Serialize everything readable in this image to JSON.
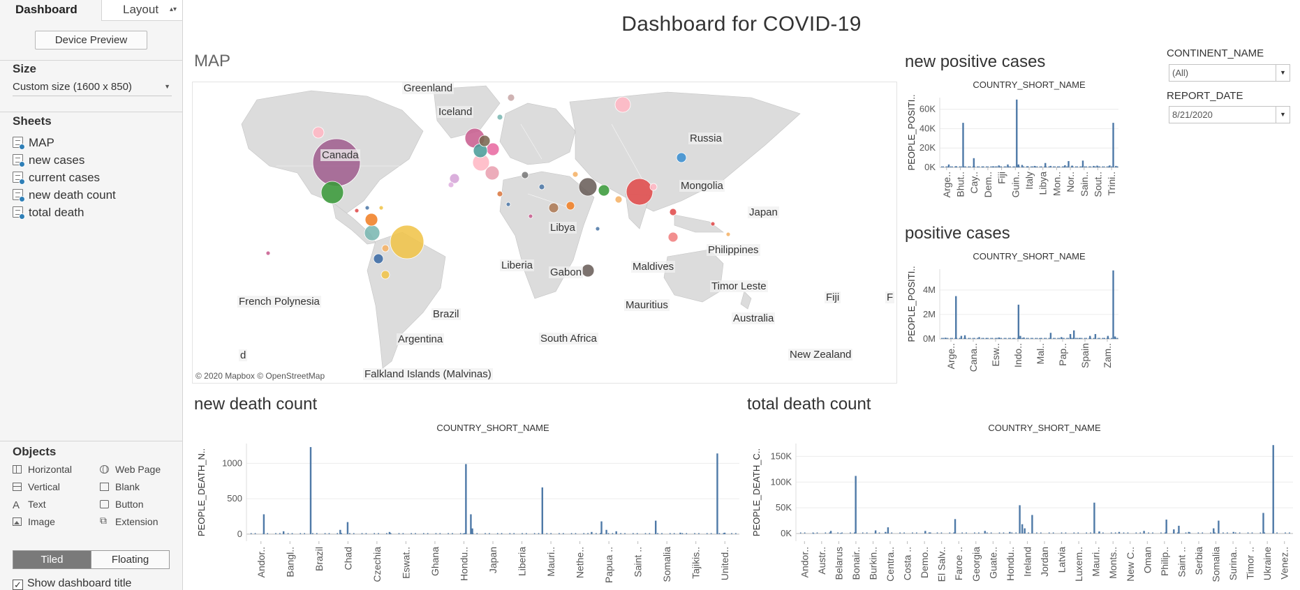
{
  "sidebar": {
    "tabs": {
      "dashboard": "Dashboard",
      "layout": "Layout"
    },
    "device_preview": "Device Preview",
    "size": {
      "title": "Size",
      "value": "Custom size (1600 x 850)"
    },
    "sheets": {
      "title": "Sheets",
      "items": [
        "MAP",
        "new cases",
        "current cases",
        "new death count",
        "total death"
      ]
    },
    "objects": {
      "title": "Objects",
      "items": [
        "Horizontal",
        "Web Page",
        "Vertical",
        "Blank",
        "Text",
        "Button",
        "Image",
        "Extension"
      ]
    },
    "layout_mode": {
      "tiled": "Tiled",
      "floating": "Floating",
      "selected": "Tiled"
    },
    "show_title": {
      "label": "Show dashboard title",
      "checked": true
    }
  },
  "dashboard": {
    "title": "Dashboard for COVID-19",
    "map": {
      "title": "MAP",
      "credit": "© 2020 Mapbox © OpenStreetMap",
      "labels": [
        "Greenland",
        "Iceland",
        "Russia",
        "Canada",
        "Mongolia",
        "Japan",
        "Libya",
        "Philippines",
        "Liberia",
        "Gabon",
        "Maldives",
        "Timor Leste",
        "French Polynesia",
        "Mauritius",
        "Fiji",
        "Brazil",
        "Australia",
        "Argentina",
        "South Africa",
        "New Zealand",
        "Falkland Islands (Malvinas)",
        "d",
        "F"
      ]
    },
    "filters": {
      "continent": {
        "label": "CONTINENT_NAME",
        "value": "(All)"
      },
      "report_date": {
        "label": "REPORT_DATE",
        "value": "8/21/2020"
      }
    }
  },
  "colors": {
    "bar": "#4e79a7",
    "grid": "#ececec",
    "land": "#d9d9d9",
    "water": "#ffffff"
  },
  "chart_data": [
    {
      "id": "new-positive-cases",
      "type": "bar",
      "title": "new positive cases",
      "xlabel": "COUNTRY_SHORT_NAME",
      "ylabel": "PEOPLE_POSITI..",
      "yticks": [
        0,
        20000,
        40000,
        60000
      ],
      "ytick_labels": [
        "0K",
        "20K",
        "40K",
        "60K"
      ],
      "ylim": [
        0,
        72000
      ],
      "tick_labels": [
        "Arge..",
        "Bhut..",
        "Cay..",
        "Dem..",
        "Fiji",
        "Guin..",
        "Italy",
        "Libya",
        "Mon..",
        "Nor..",
        "Sain..",
        "Sout..",
        "Trini.."
      ],
      "bars": [
        [
          0.05,
          3000
        ],
        [
          0.09,
          1200
        ],
        [
          0.13,
          46000
        ],
        [
          0.19,
          9500
        ],
        [
          0.24,
          800
        ],
        [
          0.3,
          1100
        ],
        [
          0.33,
          2000
        ],
        [
          0.38,
          3000
        ],
        [
          0.43,
          70000
        ],
        [
          0.44,
          3000
        ],
        [
          0.46,
          2500
        ],
        [
          0.49,
          1200
        ],
        [
          0.53,
          1500
        ],
        [
          0.59,
          4500
        ],
        [
          0.62,
          1500
        ],
        [
          0.66,
          800
        ],
        [
          0.7,
          2200
        ],
        [
          0.72,
          6500
        ],
        [
          0.74,
          1800
        ],
        [
          0.8,
          7000
        ],
        [
          0.86,
          1500
        ],
        [
          0.88,
          1800
        ],
        [
          0.95,
          2000
        ],
        [
          0.97,
          46000
        ],
        [
          0.985,
          1500
        ]
      ]
    },
    {
      "id": "positive-cases",
      "type": "bar",
      "title": "positive cases",
      "xlabel": "COUNTRY_SHORT_NAME",
      "ylabel": "PEOPLE_POSITI..",
      "yticks": [
        0,
        2000000,
        4000000
      ],
      "ytick_labels": [
        "0M",
        "2M",
        "4M"
      ],
      "ylim": [
        0,
        5700000
      ],
      "tick_labels": [
        "Arge..",
        "Cana..",
        "Esw..",
        "Indo..",
        "Mal..",
        "Pap..",
        "Spain",
        "Zam.."
      ],
      "bars": [
        [
          0.03,
          100000
        ],
        [
          0.09,
          3500000
        ],
        [
          0.12,
          250000
        ],
        [
          0.14,
          300000
        ],
        [
          0.22,
          150000
        ],
        [
          0.26,
          80000
        ],
        [
          0.33,
          120000
        ],
        [
          0.41,
          60000
        ],
        [
          0.44,
          2800000
        ],
        [
          0.45,
          250000
        ],
        [
          0.47,
          120000
        ],
        [
          0.56,
          60000
        ],
        [
          0.62,
          500000
        ],
        [
          0.68,
          150000
        ],
        [
          0.73,
          400000
        ],
        [
          0.75,
          700000
        ],
        [
          0.78,
          80000
        ],
        [
          0.84,
          250000
        ],
        [
          0.87,
          400000
        ],
        [
          0.92,
          80000
        ],
        [
          0.94,
          250000
        ],
        [
          0.97,
          5600000
        ],
        [
          0.98,
          200000
        ]
      ]
    },
    {
      "id": "new-death-count",
      "type": "bar",
      "title": "new death count",
      "xlabel": "COUNTRY_SHORT_NAME",
      "ylabel": "PEOPLE_DEATH_N..",
      "yticks": [
        0,
        500,
        1000
      ],
      "ytick_labels": [
        "0",
        "500",
        "1000"
      ],
      "ylim": [
        -100,
        1280
      ],
      "tick_labels": [
        "Andor..",
        "Bangl..",
        "Brazil",
        "Chad",
        "Czechia",
        "Eswat..",
        "Ghana",
        "Hondu..",
        "Japan",
        "Liberia",
        "Mauri..",
        "Nethe..",
        "Papua ..",
        "Saint ..",
        "Somalia",
        "Tajikis..",
        "United.."
      ],
      "bars": [
        [
          0.035,
          280
        ],
        [
          0.075,
          40
        ],
        [
          0.13,
          1230
        ],
        [
          0.19,
          60
        ],
        [
          0.205,
          170
        ],
        [
          0.29,
          30
        ],
        [
          0.44,
          10
        ],
        [
          0.445,
          990
        ],
        [
          0.455,
          280
        ],
        [
          0.458,
          80
        ],
        [
          0.6,
          660
        ],
        [
          0.7,
          30
        ],
        [
          0.72,
          180
        ],
        [
          0.73,
          60
        ],
        [
          0.75,
          40
        ],
        [
          0.83,
          190
        ],
        [
          0.88,
          20
        ],
        [
          0.955,
          1140
        ],
        [
          0.97,
          20
        ]
      ]
    },
    {
      "id": "total-death-count",
      "type": "bar",
      "title": "total death count",
      "xlabel": "COUNTRY_SHORT_NAME",
      "ylabel": "PEOPLE_DEATH_C..",
      "yticks": [
        0,
        50000,
        100000,
        150000
      ],
      "ytick_labels": [
        "0K",
        "50K",
        "100K",
        "150K"
      ],
      "ylim": [
        -15000,
        175000
      ],
      "tick_labels": [
        "Andor..",
        "Austr..",
        "Belarus",
        "Bonair..",
        "Burkin..",
        "Centra..",
        "Costa ..",
        "Demo..",
        "El Salv..",
        "Faroe ..",
        "Georgia",
        "Guate..",
        "Hondu..",
        "Ireland",
        "Jordan",
        "Latvia",
        "Luxem..",
        "Mauri..",
        "Monts..",
        "New C..",
        "Oman",
        "Philip..",
        "Saint ..",
        "Serbia",
        "Somalia",
        "Surina..",
        "Timor ..",
        "Ukraine",
        "Venez.."
      ],
      "bars": [
        [
          0.035,
          600
        ],
        [
          0.07,
          5000
        ],
        [
          0.09,
          800
        ],
        [
          0.12,
          112000
        ],
        [
          0.16,
          6000
        ],
        [
          0.18,
          3000
        ],
        [
          0.185,
          12000
        ],
        [
          0.26,
          5000
        ],
        [
          0.27,
          2000
        ],
        [
          0.32,
          28000
        ],
        [
          0.38,
          5000
        ],
        [
          0.43,
          3000
        ],
        [
          0.45,
          55000
        ],
        [
          0.455,
          18000
        ],
        [
          0.46,
          10000
        ],
        [
          0.475,
          36000
        ],
        [
          0.6,
          60000
        ],
        [
          0.61,
          4000
        ],
        [
          0.65,
          3000
        ],
        [
          0.7,
          5000
        ],
        [
          0.745,
          27000
        ],
        [
          0.76,
          8000
        ],
        [
          0.77,
          15000
        ],
        [
          0.79,
          3000
        ],
        [
          0.84,
          10000
        ],
        [
          0.85,
          25000
        ],
        [
          0.88,
          3000
        ],
        [
          0.94,
          40000
        ],
        [
          0.96,
          172000
        ]
      ]
    }
  ]
}
